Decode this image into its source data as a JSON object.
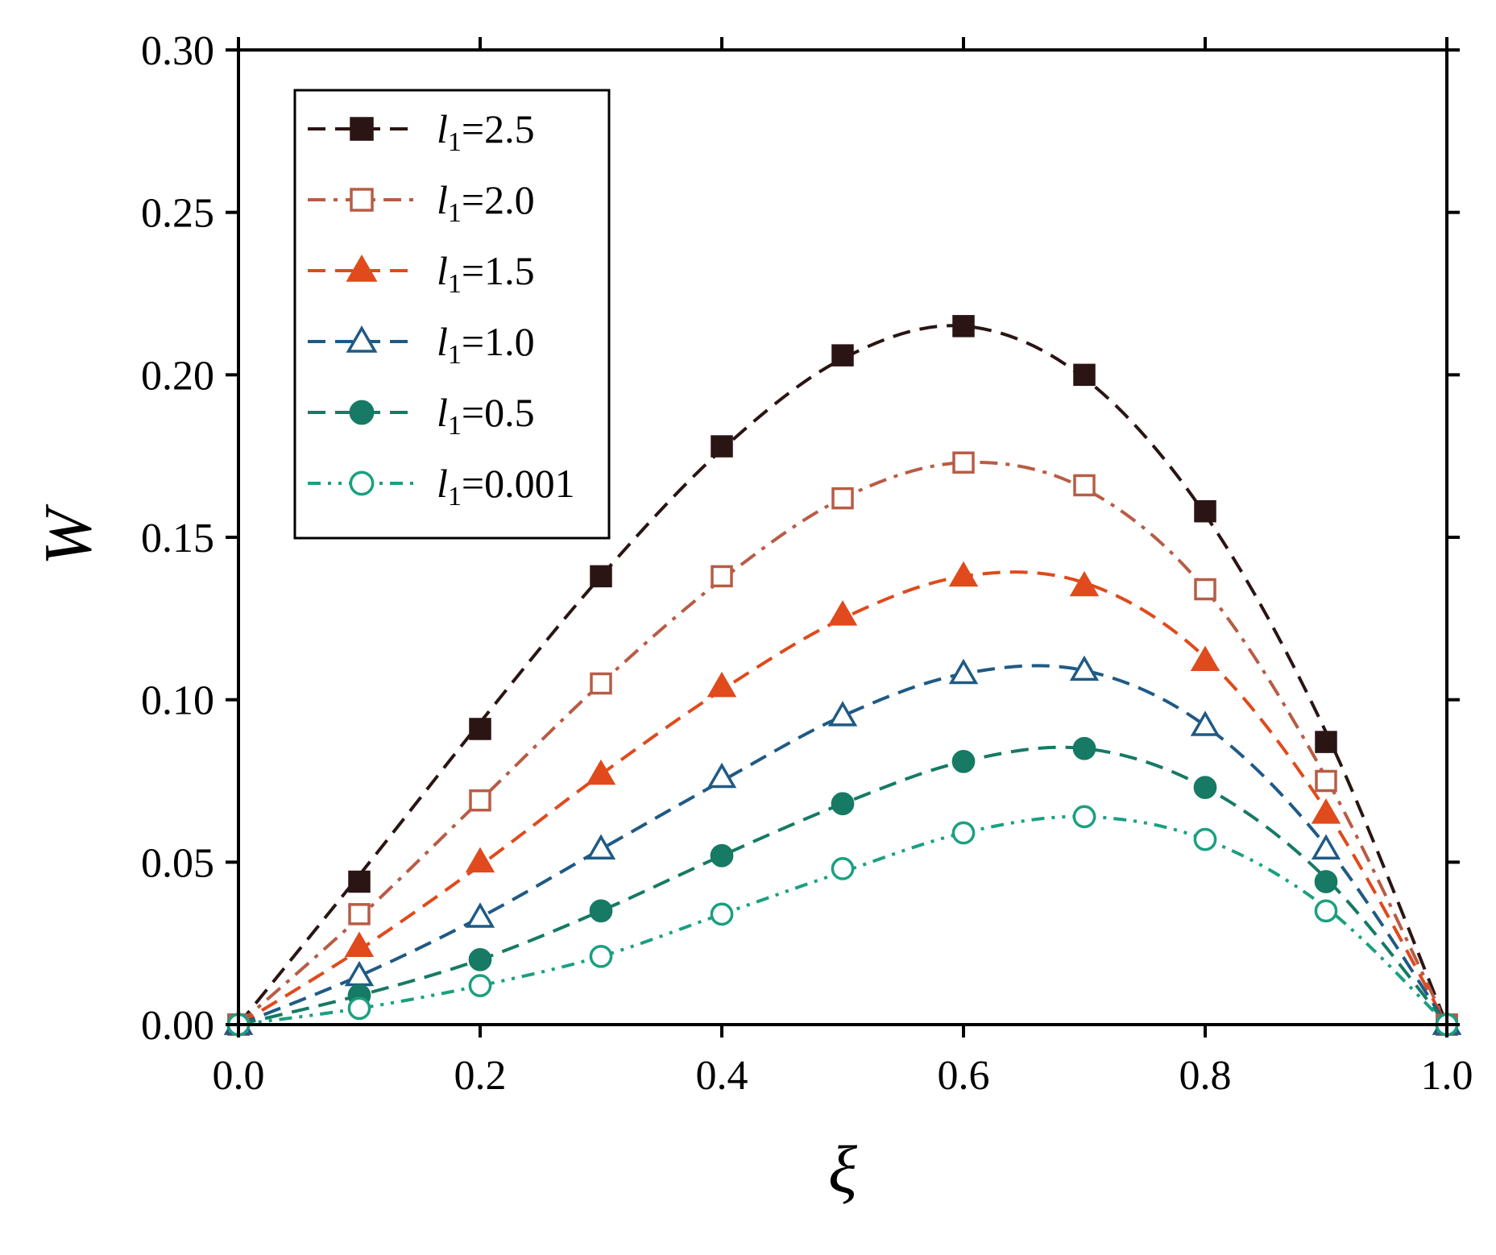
{
  "chart_data": {
    "type": "line",
    "title": "",
    "xlabel": "ξ",
    "ylabel": "W",
    "xlim": [
      0.0,
      1.0
    ],
    "ylim": [
      0.0,
      0.3
    ],
    "grid": false,
    "legend_position": "top-left",
    "x_ticks": [
      "0.0",
      "0.2",
      "0.4",
      "0.6",
      "0.8",
      "1.0"
    ],
    "y_ticks": [
      "0.00",
      "0.05",
      "0.10",
      "0.15",
      "0.20",
      "0.25",
      "0.30"
    ],
    "x": [
      0.0,
      0.1,
      0.2,
      0.3,
      0.4,
      0.5,
      0.6,
      0.7,
      0.8,
      0.9,
      1.0
    ],
    "series": [
      {
        "name": "l1=2.5",
        "legend_base": "l",
        "legend_sub": "1",
        "legend_value": "=2.5",
        "color": "#2b1414",
        "marker": "square-filled",
        "dash": "dash",
        "values": [
          0.0,
          0.044,
          0.091,
          0.138,
          0.178,
          0.206,
          0.215,
          0.2,
          0.158,
          0.087,
          0.0
        ],
        "curve": [
          0.0,
          0.046,
          0.093,
          0.138,
          0.177,
          0.205,
          0.215,
          0.199,
          0.157,
          0.09,
          0.0
        ]
      },
      {
        "name": "l1=2.0",
        "legend_base": "l",
        "legend_sub": "1",
        "legend_value": "=2.0",
        "color": "#b85c45",
        "marker": "square-open",
        "dash": "dash-dot",
        "values": [
          0.0,
          0.034,
          0.069,
          0.105,
          0.138,
          0.162,
          0.173,
          0.166,
          0.134,
          0.075,
          0.0
        ],
        "curve": [
          0.0,
          0.033,
          0.069,
          0.105,
          0.137,
          0.162,
          0.173,
          0.165,
          0.134,
          0.076,
          0.0
        ]
      },
      {
        "name": "l1=1.5",
        "legend_base": "l",
        "legend_sub": "1",
        "legend_value": "=1.5",
        "color": "#e04a1c",
        "marker": "triangle-filled",
        "dash": "dash",
        "values": [
          0.0,
          0.024,
          0.05,
          0.077,
          0.104,
          0.126,
          0.138,
          0.135,
          0.112,
          0.065,
          0.0
        ],
        "curve": [
          0.0,
          0.023,
          0.049,
          0.077,
          0.103,
          0.125,
          0.138,
          0.136,
          0.113,
          0.066,
          0.0
        ]
      },
      {
        "name": "l1=1.0",
        "legend_base": "l",
        "legend_sub": "1",
        "legend_value": "=1.0",
        "color": "#1f5a85",
        "marker": "triangle-open",
        "dash": "dash",
        "values": [
          0.0,
          0.015,
          0.033,
          0.054,
          0.076,
          0.095,
          0.108,
          0.109,
          0.092,
          0.054,
          0.0
        ],
        "curve": [
          0.0,
          0.015,
          0.033,
          0.054,
          0.075,
          0.095,
          0.108,
          0.109,
          0.092,
          0.055,
          0.0
        ]
      },
      {
        "name": "l1=0.5",
        "legend_base": "l",
        "legend_sub": "1",
        "legend_value": "=0.5",
        "color": "#167a64",
        "marker": "circle-filled",
        "dash": "dash",
        "values": [
          0.0,
          0.009,
          0.02,
          0.035,
          0.052,
          0.068,
          0.081,
          0.085,
          0.073,
          0.044,
          0.0
        ],
        "curve": [
          0.0,
          0.009,
          0.02,
          0.035,
          0.052,
          0.068,
          0.081,
          0.085,
          0.073,
          0.045,
          0.0
        ]
      },
      {
        "name": "l1=0.001",
        "legend_base": "l",
        "legend_sub": "1",
        "legend_value": "=0.001",
        "color": "#1aa080",
        "marker": "circle-open",
        "dash": "dash-dot-dot",
        "values": [
          0.0,
          0.005,
          0.012,
          0.021,
          0.034,
          0.048,
          0.059,
          0.064,
          0.057,
          0.035,
          0.0
        ],
        "curve": [
          0.0,
          0.005,
          0.012,
          0.021,
          0.034,
          0.047,
          0.059,
          0.064,
          0.057,
          0.036,
          0.0
        ]
      }
    ]
  }
}
